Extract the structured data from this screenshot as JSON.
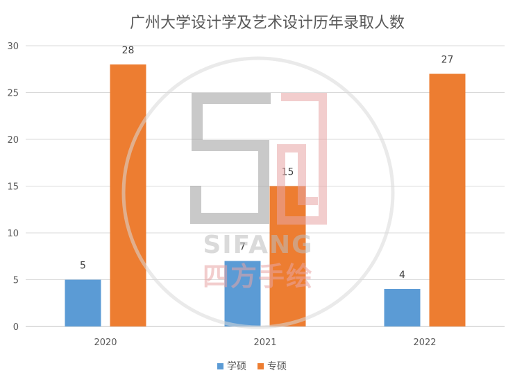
{
  "chart_data": {
    "type": "bar",
    "title": "广州大学设计学及艺术设计历年录取人数",
    "categories": [
      "2020",
      "2021",
      "2022"
    ],
    "series": [
      {
        "name": "学硕",
        "values": [
          5,
          7,
          4
        ],
        "color": "#5b9bd5"
      },
      {
        "name": "专硕",
        "values": [
          28,
          15,
          27
        ],
        "color": "#ed7d31"
      }
    ],
    "ylim": [
      0,
      30
    ],
    "yticks": [
      0,
      5,
      10,
      15,
      20,
      25,
      30
    ],
    "grid": true,
    "legend": "bottom-center",
    "data_labels": true
  },
  "watermark": {
    "logo_text": "SIFANG",
    "brand_text": "四方手绘"
  }
}
